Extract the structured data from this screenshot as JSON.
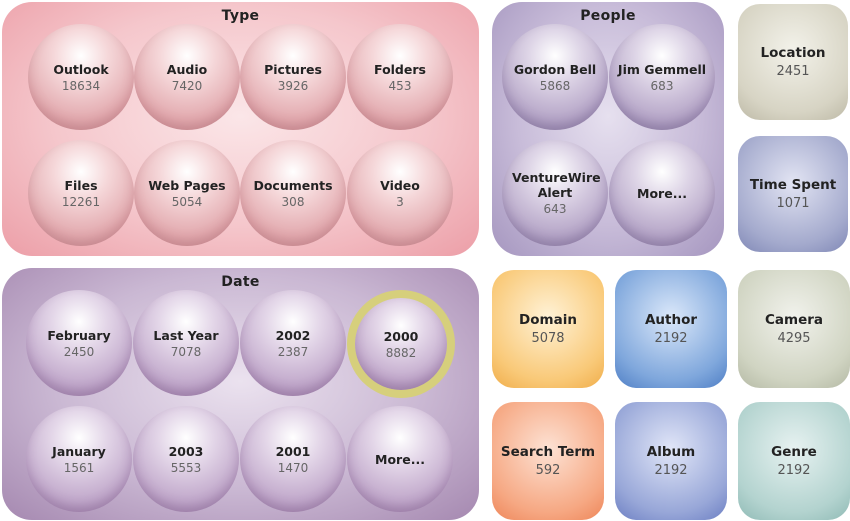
{
  "type_panel": {
    "title": "Type",
    "items": [
      {
        "label": "Outlook",
        "count": "18634"
      },
      {
        "label": "Audio",
        "count": "7420"
      },
      {
        "label": "Pictures",
        "count": "3926"
      },
      {
        "label": "Folders",
        "count": "453"
      },
      {
        "label": "Files",
        "count": "12261"
      },
      {
        "label": "Web Pages",
        "count": "5054"
      },
      {
        "label": "Documents",
        "count": "308"
      },
      {
        "label": "Video",
        "count": "3"
      }
    ]
  },
  "people_panel": {
    "title": "People",
    "items": [
      {
        "label": "Gordon Bell",
        "count": "5868"
      },
      {
        "label": "Jim Gemmell",
        "count": "683"
      },
      {
        "label": "VentureWire Alert",
        "count": "643"
      },
      {
        "label": "More...",
        "count": ""
      }
    ]
  },
  "date_panel": {
    "title": "Date",
    "items": [
      {
        "label": "February",
        "count": "2450"
      },
      {
        "label": "Last Year",
        "count": "7078"
      },
      {
        "label": "2002",
        "count": "2387"
      },
      {
        "label": "2000",
        "count": "8882"
      },
      {
        "label": "January",
        "count": "1561"
      },
      {
        "label": "2003",
        "count": "5553"
      },
      {
        "label": "2001",
        "count": "1470"
      },
      {
        "label": "More...",
        "count": ""
      }
    ]
  },
  "tiles": {
    "location": {
      "label": "Location",
      "count": "2451"
    },
    "time_spent": {
      "label": "Time Spent",
      "count": "1071"
    },
    "domain": {
      "label": "Domain",
      "count": "5078"
    },
    "author": {
      "label": "Author",
      "count": "2192"
    },
    "camera": {
      "label": "Camera",
      "count": "4295"
    },
    "search_term": {
      "label": "Search Term",
      "count": "592"
    },
    "album": {
      "label": "Album",
      "count": "2192"
    },
    "genre": {
      "label": "Genre",
      "count": "2192"
    }
  },
  "colors": {
    "type_panel": "#f5c7cc",
    "people_panel": "#c8bcd9",
    "date_panel": "#cab8d3",
    "selected_ring": "#d6cf7c",
    "location_tile": "#d7d4c4",
    "time_spent_tile": "#a4aacd",
    "domain_tile": "#f9c978",
    "author_tile": "#7fa7dc",
    "camera_tile": "#d0d4c2",
    "search_term_tile": "#f6a883",
    "album_tile": "#98a7d8",
    "genre_tile": "#b3d3cf"
  },
  "selected_item": "2000"
}
